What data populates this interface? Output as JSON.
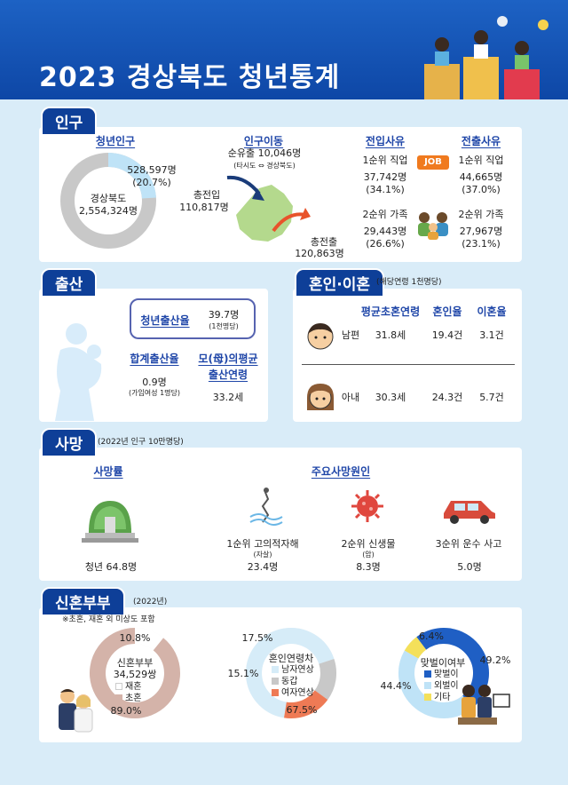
{
  "title": "2023 경상북도 청년통계",
  "colors": {
    "header": "#0e47a6",
    "tab": "#0e3f98",
    "accent_blue": "#1f46a8",
    "donut_gray": "#c8c8c8",
    "donut_blue": "#bfe3f7",
    "brown": "#d4b3a9",
    "orange": "#ee7a55",
    "yellow": "#f4e05a"
  },
  "population": {
    "tab": "인구",
    "youth_pop": {
      "heading": "청년인구",
      "center_line1": "경상북도",
      "center_line2": "2,554,324명",
      "youth_value": "528,597명",
      "youth_pct": "(20.7%)"
    },
    "migration": {
      "heading": "인구이동",
      "net_line1": "순유출 10,046명",
      "net_line2": "(타시도 ⇔ 경상북도)",
      "in_label": "총전입",
      "in_value": "110,817명",
      "out_label": "총전출",
      "out_value": "120,863명"
    },
    "in_reason": {
      "heading": "전입사유",
      "r1_label": "1순위 직업",
      "r1_value": "37,742명",
      "r1_pct": "(34.1%)",
      "r2_label": "2순위 가족",
      "r2_value": "29,443명",
      "r2_pct": "(26.6%)"
    },
    "out_reason": {
      "heading": "전출사유",
      "r1_label": "1순위 직업",
      "r1_value": "44,665명",
      "r1_pct": "(37.0%)",
      "r2_label": "2순위 가족",
      "r2_value": "27,967명",
      "r2_pct": "(23.1%)"
    },
    "job_badge": "JOB"
  },
  "birth": {
    "tab": "출산",
    "youth_rate_label": "청년출산율",
    "youth_rate_value": "39.7명",
    "youth_rate_unit": "(1천명당)",
    "tfr_label": "합계출산율",
    "tfr_value": "0.9명",
    "tfr_unit": "(가임여성 1명당)",
    "mother_age_label1": "모(母)의평균",
    "mother_age_label2": "출산연령",
    "mother_age_value": "33.2세"
  },
  "marriage": {
    "tab": "혼인·이혼",
    "note": "(해당연령 1천명당)",
    "headers": [
      "평균초혼연령",
      "혼인율",
      "이혼율"
    ],
    "rows": [
      {
        "who": "남편",
        "values": [
          "31.8세",
          "19.4건",
          "3.1건"
        ]
      },
      {
        "who": "아내",
        "values": [
          "30.3세",
          "24.3건",
          "5.7건"
        ]
      }
    ]
  },
  "death": {
    "tab": "사망",
    "note": "(2022년 인구 10만명당)",
    "rate_heading": "사망률",
    "rate_value": "청년 64.8명",
    "cause_heading": "주요사망원인",
    "causes": [
      {
        "label": "1순위 고의적자해",
        "sub": "(자살)",
        "value": "23.4명"
      },
      {
        "label": "2순위 신생물",
        "sub": "(암)",
        "value": "8.3명"
      },
      {
        "label": "3순위 운수 사고",
        "sub": "",
        "value": "5.0명"
      }
    ]
  },
  "newlywed": {
    "tab": "신혼부부",
    "year_note": "(2022년)",
    "scope_note": "※초혼, 재혼 외 미상도 포함"
  },
  "chart_data": [
    {
      "type": "pie",
      "title": "신혼부부",
      "total_label": "34,529쌍",
      "categories": [
        "재혼",
        "초혼"
      ],
      "values": [
        10.8,
        89.0
      ],
      "value_labels": [
        "10.8%",
        "89.0%"
      ],
      "colors": [
        "#ffffff",
        "#d4b3a9"
      ]
    },
    {
      "type": "pie",
      "title": "혼인연령차",
      "categories": [
        "남자연상",
        "동갑",
        "여자연상"
      ],
      "values": [
        67.5,
        15.1,
        17.5
      ],
      "value_labels": [
        "67.5%",
        "15.1%",
        "17.5%"
      ],
      "colors": [
        "#d6ecf8",
        "#c8c8c8",
        "#ee7a55"
      ]
    },
    {
      "type": "pie",
      "title": "맞벌이여부",
      "categories": [
        "맞벌이",
        "외벌이",
        "기타"
      ],
      "values": [
        49.2,
        44.4,
        6.4
      ],
      "value_labels": [
        "49.2%",
        "44.4%",
        "6.4%"
      ],
      "colors": [
        "#1f5fc4",
        "#bfe3f7",
        "#f4e05a"
      ]
    }
  ]
}
